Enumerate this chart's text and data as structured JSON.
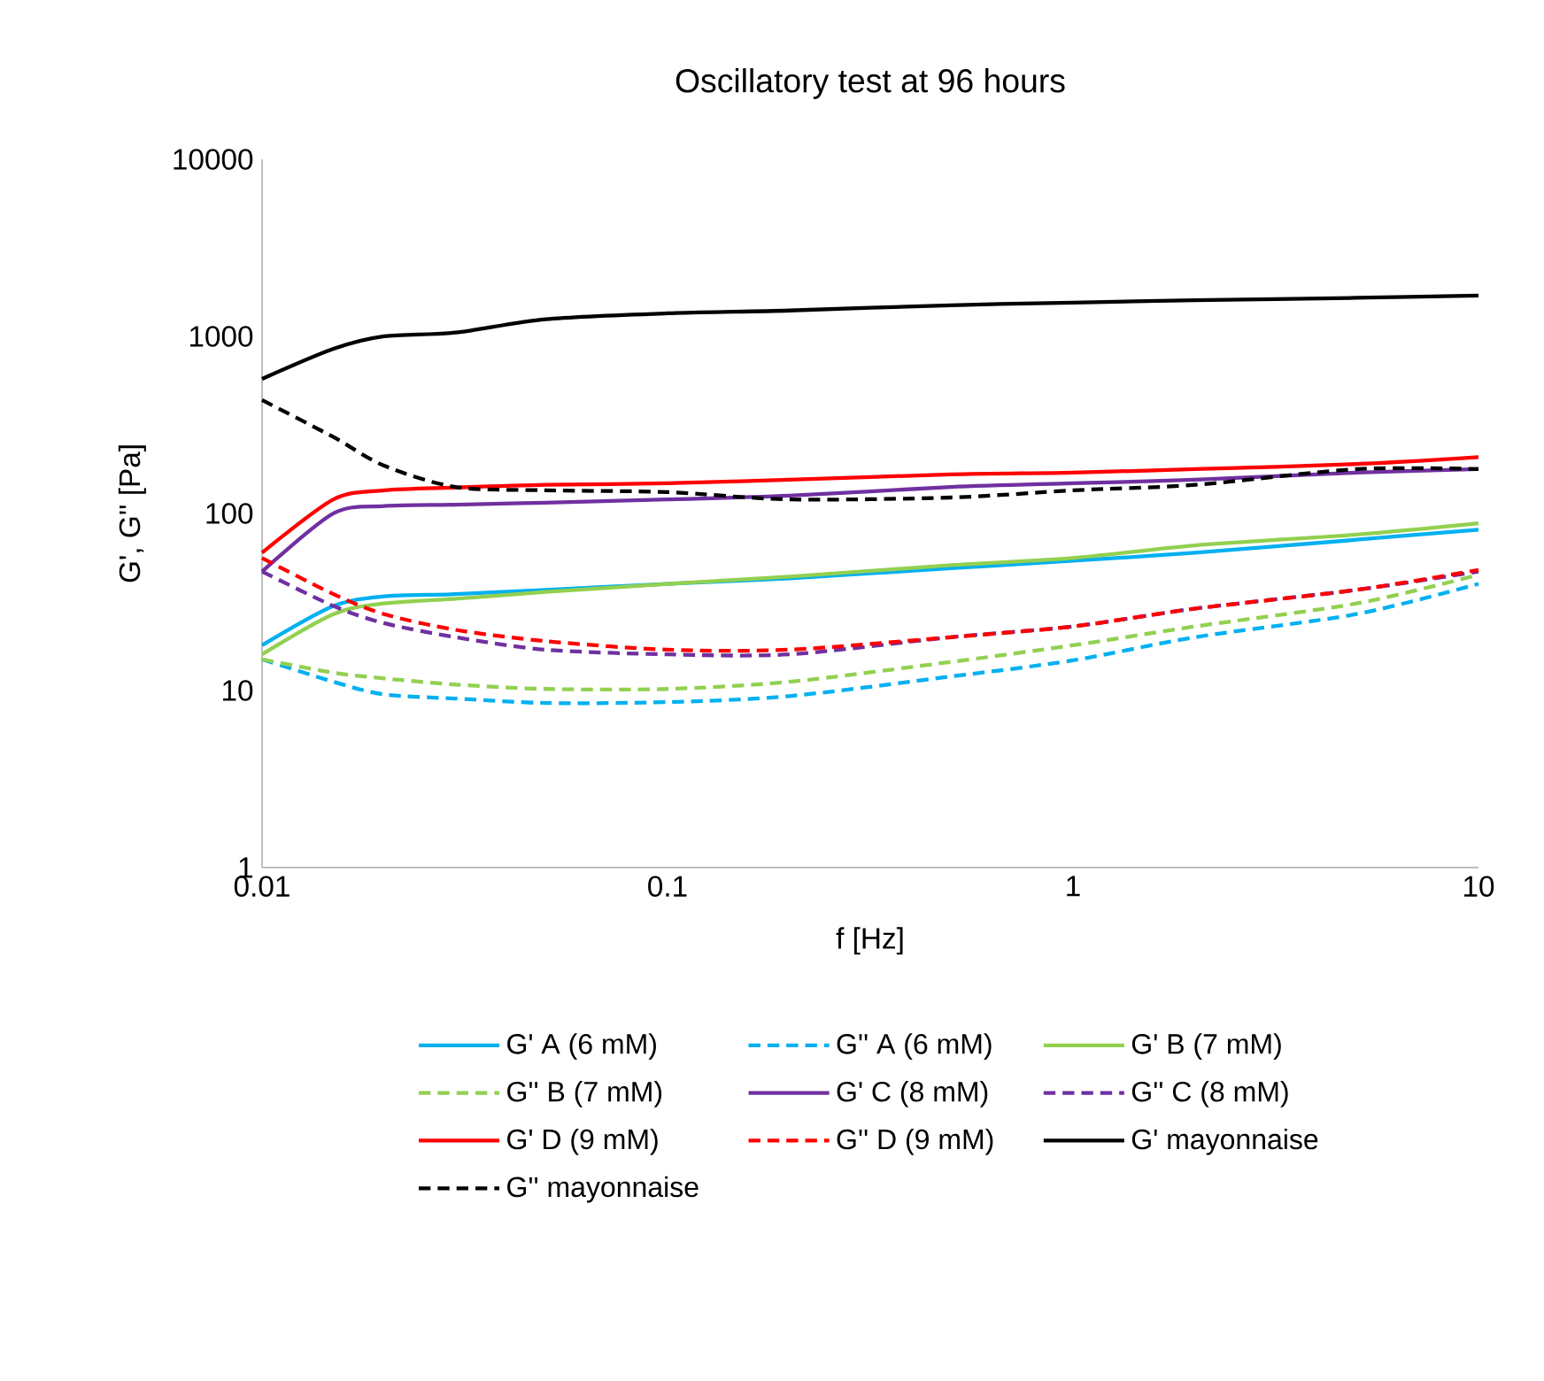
{
  "chart_data": {
    "type": "line",
    "title": "Oscillatory test at 96 hours",
    "xlabel": "f [Hz]",
    "ylabel": "G', G'' [Pa]",
    "log": "xy",
    "legend": "bottom",
    "marker": "none",
    "xlim": [
      0.01,
      10
    ],
    "xticks": [
      0.01,
      0.1,
      1,
      10
    ],
    "ylim": [
      1,
      10000
    ],
    "yticks": [
      1,
      10,
      100,
      1000,
      10000
    ],
    "x": [
      0.01,
      0.015,
      0.02,
      0.03,
      0.05,
      0.1,
      0.2,
      0.5,
      1,
      2,
      5,
      10
    ],
    "series": [
      {
        "name": "G' A (6 mM)",
        "color": "#00b0f0",
        "line_style": "solid",
        "values": [
          18,
          30,
          34,
          35,
          37,
          40,
          43,
          49,
          54,
          60,
          71,
          81
        ]
      },
      {
        "name": "G'' A (6 mM)",
        "color": "#00b0f0",
        "line_style": "dashed",
        "values": [
          15,
          11.2,
          9.5,
          9.0,
          8.5,
          8.6,
          9.3,
          12,
          14.8,
          20,
          27,
          40
        ]
      },
      {
        "name": "G' B (7 mM)",
        "color": "#92d050",
        "line_style": "solid",
        "values": [
          16,
          27,
          31,
          33,
          36,
          40,
          44,
          51,
          56,
          66,
          76,
          88
        ]
      },
      {
        "name": "G'' B (7 mM)",
        "color": "#92d050",
        "line_style": "dashed",
        "values": [
          15,
          12.6,
          11.7,
          10.8,
          10.2,
          10.2,
          11.2,
          14.5,
          18,
          23,
          31,
          45
        ]
      },
      {
        "name": "G' C (8 mM)",
        "color": "#7030a0",
        "line_style": "solid",
        "values": [
          47,
          100,
          110,
          112,
          115,
          120,
          126,
          141,
          148,
          155,
          170,
          178
        ]
      },
      {
        "name": "G'' C (8 mM)",
        "color": "#7030a0",
        "line_style": "dashed",
        "values": [
          47,
          30,
          24,
          20,
          17,
          16,
          16,
          20,
          23,
          29,
          37,
          47
        ]
      },
      {
        "name": "G' D (9 mM)",
        "color": "#ff0000",
        "line_style": "solid",
        "values": [
          60,
          120,
          135,
          140,
          145,
          148,
          155,
          166,
          170,
          178,
          190,
          208
        ]
      },
      {
        "name": "G'' D (9 mM)",
        "color": "#ff0000",
        "line_style": "dashed",
        "values": [
          56,
          35,
          27,
          22,
          19,
          17,
          17,
          20,
          23,
          29,
          37,
          48
        ]
      },
      {
        "name": "G' mayonnaise",
        "color": "#000000",
        "line_style": "solid",
        "values": [
          575,
          850,
          1000,
          1050,
          1250,
          1350,
          1400,
          1500,
          1550,
          1600,
          1650,
          1700
        ]
      },
      {
        "name": "G'' mayonnaise",
        "color": "#000000",
        "line_style": "dashed",
        "values": [
          437,
          270,
          186,
          141,
          135,
          132,
          120,
          123,
          135,
          145,
          178,
          178
        ]
      }
    ]
  }
}
